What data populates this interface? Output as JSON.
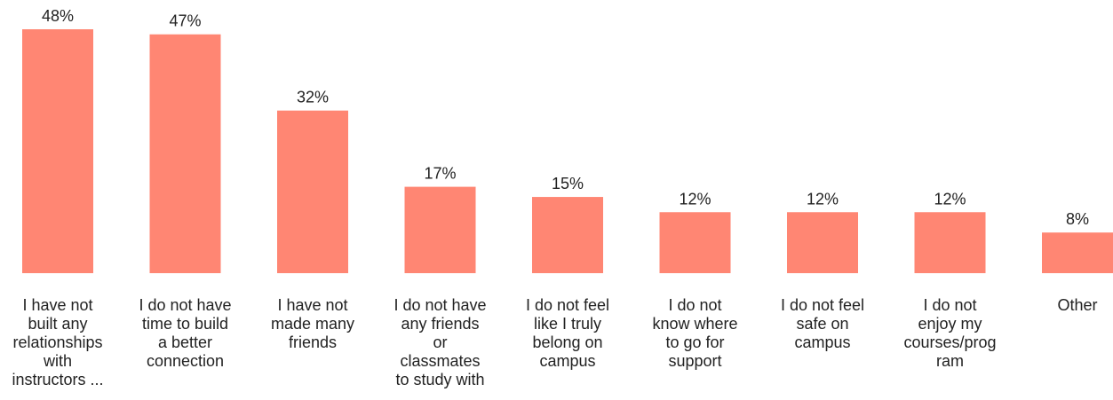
{
  "chart_data": {
    "type": "bar",
    "categories": [
      "I have not built any relationships with instructors ...",
      "I do not have time to build a better connection",
      "I have not made many friends",
      "I do not have any friends or classmates to study with",
      "I do not feel like I truly belong on campus",
      "I do not know where to go for support",
      "I do not feel safe on campus",
      "I do not enjoy my courses/prog ram",
      "Other"
    ],
    "category_lines": [
      [
        "I have not",
        "built any",
        "relationships",
        "with",
        "instructors ..."
      ],
      [
        "I do not have",
        "time to build",
        "a better",
        "connection"
      ],
      [
        "I have not",
        "made many",
        "friends"
      ],
      [
        "I do not have",
        "any friends",
        "or",
        "classmates",
        "to study with"
      ],
      [
        "I do not feel",
        "like I truly",
        "belong on",
        "campus"
      ],
      [
        "I do not",
        "know where",
        "to go for",
        "support"
      ],
      [
        "I do not feel",
        "safe on",
        "campus"
      ],
      [
        "I do not",
        "enjoy my",
        "courses/prog",
        "ram"
      ],
      [
        "Other"
      ]
    ],
    "values": [
      48,
      47,
      32,
      17,
      15,
      12,
      12,
      12,
      8
    ],
    "value_labels": [
      "48%",
      "47%",
      "32%",
      "17%",
      "15%",
      "12%",
      "12%",
      "12%",
      "8%"
    ],
    "ylim": [
      0,
      48
    ],
    "grid": false,
    "legend": "none",
    "bar_color": "#FF8673"
  }
}
